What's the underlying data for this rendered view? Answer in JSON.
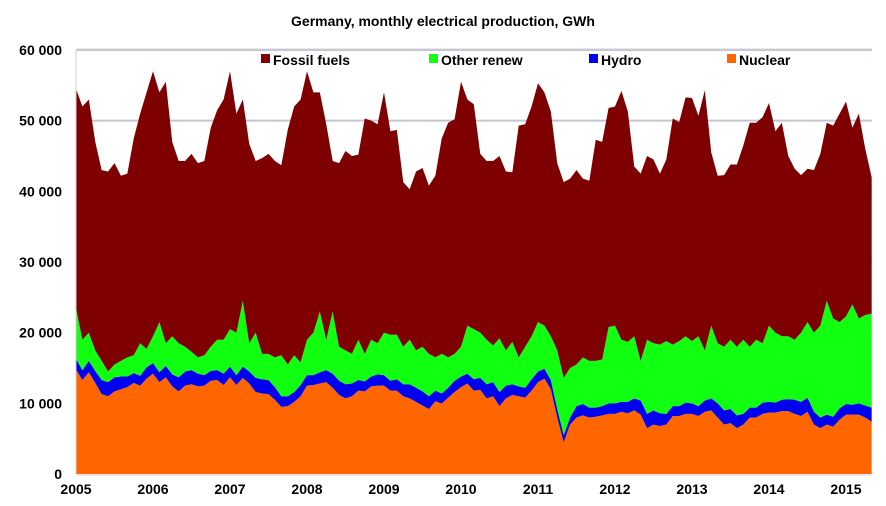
{
  "chart_data": {
    "type": "area",
    "stacked": true,
    "title": "Germany, monthly electrical production, GWh",
    "xlabel": "",
    "ylabel": "",
    "x_start": "2005-01",
    "x_end": "2015-05",
    "x_frequency": "monthly",
    "x_tick_labels": [
      "2005",
      "2006",
      "2007",
      "2008",
      "2009",
      "2010",
      "2011",
      "2012",
      "2013",
      "2014",
      "2015"
    ],
    "y_tick_labels": [
      "0",
      "10 000",
      "20 000",
      "30 000",
      "40 000",
      "50 000",
      "60 000"
    ],
    "ylim": [
      0,
      60000
    ],
    "grid": "horizontal",
    "legend_position": "top",
    "legend_order": [
      "Fossil fuels",
      "Other renew",
      "Hydro",
      "Nuclear"
    ],
    "series": [
      {
        "name": "Nuclear",
        "color": "#ff6600",
        "values": [
          14800,
          13300,
          14400,
          12900,
          11300,
          11000,
          11700,
          12000,
          12300,
          12900,
          12500,
          13500,
          14200,
          13000,
          13700,
          12400,
          11700,
          12500,
          12700,
          12400,
          12500,
          13200,
          13300,
          12600,
          13700,
          12600,
          13600,
          12800,
          11600,
          11400,
          11300,
          10500,
          9500,
          9600,
          10200,
          11000,
          12500,
          12600,
          12800,
          13000,
          12200,
          11200,
          10700,
          11000,
          11800,
          11700,
          12400,
          12500,
          12500,
          11800,
          11800,
          11000,
          10700,
          10200,
          9700,
          9200,
          10300,
          10000,
          10800,
          11600,
          12300,
          12800,
          11800,
          11900,
          10700,
          11000,
          9600,
          10700,
          11200,
          11000,
          10800,
          11800,
          13000,
          13500,
          12000,
          8000,
          4500,
          7000,
          8000,
          8300,
          8000,
          8100,
          8300,
          8500,
          8500,
          8800,
          8600,
          9000,
          8400,
          6500,
          7000,
          6800,
          7000,
          8200,
          8200,
          8500,
          8500,
          8200,
          8800,
          9000,
          8000,
          7000,
          7200,
          6500,
          7000,
          8000,
          8000,
          8500,
          8700,
          8700,
          8900,
          8900,
          8500,
          8200,
          8800,
          7000,
          6500,
          7000,
          6700,
          7700,
          8400,
          8400,
          8400,
          8000,
          7400
        ]
      },
      {
        "name": "Hydro",
        "color": "#0000ee",
        "values": [
          1500,
          1400,
          1600,
          1700,
          2000,
          2000,
          2000,
          1800,
          1500,
          1400,
          1400,
          1600,
          1500,
          1400,
          1600,
          1700,
          2000,
          2000,
          2000,
          1800,
          1500,
          1400,
          1400,
          1600,
          1500,
          1400,
          1600,
          1700,
          2000,
          2000,
          2000,
          1800,
          1500,
          1400,
          1400,
          1600,
          1500,
          1400,
          1600,
          1700,
          2000,
          2000,
          2000,
          1800,
          1500,
          1400,
          1400,
          1600,
          1500,
          1400,
          1600,
          1700,
          2000,
          2000,
          2000,
          1800,
          1500,
          1400,
          1400,
          1600,
          1500,
          1400,
          1600,
          1700,
          2000,
          2000,
          2000,
          1800,
          1500,
          1400,
          1400,
          1600,
          1500,
          1400,
          1300,
          1200,
          1000,
          1000,
          1600,
          1600,
          1400,
          1300,
          1300,
          1500,
          1500,
          1400,
          1600,
          1700,
          2000,
          2000,
          2000,
          1800,
          1500,
          1400,
          1400,
          1600,
          1500,
          1400,
          1600,
          1700,
          2000,
          2000,
          2000,
          1800,
          1500,
          1400,
          1400,
          1600,
          1500,
          1400,
          1600,
          1700,
          2000,
          2000,
          2000,
          1800,
          1500,
          1400,
          1400,
          1600,
          1500,
          1400,
          1600,
          1700,
          2000
        ]
      },
      {
        "name": "Other renew",
        "color": "#11ff11",
        "values": [
          7200,
          4300,
          4000,
          2900,
          2700,
          1500,
          1800,
          2200,
          2700,
          2500,
          4600,
          2600,
          3800,
          7100,
          3200,
          5400,
          4800,
          3500,
          2600,
          2300,
          2800,
          3400,
          4300,
          4800,
          5300,
          6000,
          9300,
          4000,
          6400,
          3600,
          3700,
          4200,
          5800,
          4500,
          5200,
          3200,
          5000,
          6000,
          8600,
          4300,
          8800,
          4800,
          4800,
          4200,
          5700,
          3900,
          5200,
          4400,
          6000,
          6500,
          6300,
          5300,
          6300,
          5300,
          6300,
          6000,
          4700,
          5600,
          4300,
          3800,
          4200,
          6800,
          7100,
          6400,
          6300,
          5200,
          7600,
          5000,
          6000,
          4100,
          5800,
          6100,
          7000,
          6100,
          6200,
          8300,
          8100,
          7000,
          5900,
          6600,
          6600,
          6600,
          6600,
          10800,
          11000,
          8800,
          8500,
          8800,
          5600,
          10500,
          9500,
          9700,
          10300,
          8700,
          9200,
          9400,
          8800,
          9900,
          7100,
          10300,
          8500,
          9000,
          9800,
          9700,
          10500,
          8600,
          9600,
          8400,
          10800,
          9900,
          9000,
          8900,
          8500,
          9800,
          10700,
          11200,
          13000,
          16100,
          13900,
          12200,
          12400,
          14200,
          12000,
          12800,
          13300
        ]
      },
      {
        "name": "Fossil fuels",
        "color": "#7f0000",
        "values": [
          31000,
          33000,
          33000,
          29500,
          27000,
          28300,
          28500,
          26200,
          26000,
          30700,
          32500,
          36300,
          37500,
          32500,
          37000,
          27500,
          25800,
          26300,
          28000,
          27500,
          27500,
          31000,
          32500,
          34000,
          36500,
          31000,
          28500,
          28200,
          24300,
          27700,
          28300,
          27800,
          26900,
          33200,
          35200,
          37200,
          38000,
          34000,
          31000,
          30500,
          21300,
          26000,
          28200,
          28000,
          26200,
          33300,
          31000,
          31000,
          34000,
          28800,
          29000,
          23300,
          21300,
          25300,
          25300,
          23800,
          25700,
          30500,
          33200,
          33200,
          37500,
          32000,
          31800,
          25300,
          25300,
          26100,
          25800,
          25300,
          24000,
          32800,
          31500,
          32500,
          33800,
          33000,
          31800,
          26500,
          27700,
          26800,
          27500,
          25300,
          25500,
          31300,
          30800,
          31000,
          31000,
          35200,
          32600,
          24000,
          26500,
          26000,
          26000,
          24200,
          25700,
          32000,
          31000,
          33800,
          34400,
          31200,
          36800,
          24500,
          23700,
          24300,
          24800,
          25800,
          27500,
          31700,
          30700,
          32000,
          31500,
          28500,
          30200,
          25500,
          24200,
          22300,
          21700,
          23000,
          24300,
          25200,
          27300,
          29500,
          30400,
          25000,
          29000,
          23500,
          19300
        ]
      }
    ]
  }
}
